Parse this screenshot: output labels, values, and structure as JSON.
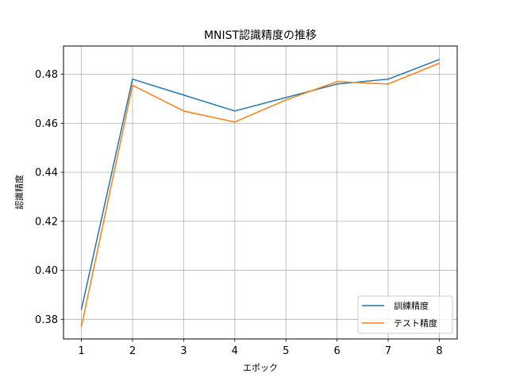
{
  "chart_data": {
    "type": "line",
    "title": "MNIST認識精度の推移",
    "xlabel": "エポック",
    "ylabel": "認識精度",
    "x": [
      1,
      2,
      3,
      4,
      5,
      6,
      7,
      8
    ],
    "xlim": [
      0.65,
      8.35
    ],
    "ylim": [
      0.372,
      0.4915
    ],
    "xticks": [
      1,
      2,
      3,
      4,
      5,
      6,
      7,
      8
    ],
    "yticks": [
      0.38,
      0.4,
      0.42,
      0.44,
      0.46,
      0.48
    ],
    "ytick_labels": [
      "0.38",
      "0.40",
      "0.42",
      "0.44",
      "0.46",
      "0.48"
    ],
    "grid": true,
    "legend_position": "lower right",
    "series": [
      {
        "name": "訓練精度",
        "color": "#1f77b4",
        "values": [
          0.384,
          0.478,
          0.4715,
          0.465,
          0.4705,
          0.476,
          0.478,
          0.486
        ]
      },
      {
        "name": "テスト精度",
        "color": "#ff7f0e",
        "values": [
          0.377,
          0.4755,
          0.465,
          0.4605,
          0.4695,
          0.477,
          0.476,
          0.4845
        ]
      }
    ]
  }
}
